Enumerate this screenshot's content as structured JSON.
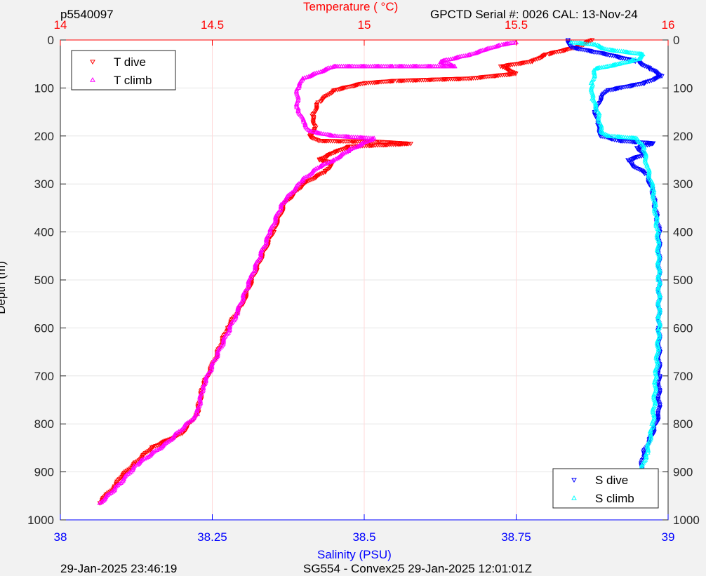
{
  "header": {
    "profile_id": "p5540097",
    "serial_info": "GPCTD Serial #: 0026 CAL: 13-Nov-24"
  },
  "footer": {
    "timestamp_left": "29-Jan-2025 23:46:19",
    "mission_info": "SG554 - Convex25 29-Jan-2025 12:01:01Z"
  },
  "colors": {
    "t_dive": "#ff0000",
    "t_climb": "#ff00ff",
    "s_dive": "#0000ff",
    "s_climb": "#00ffff",
    "top_axis": "#ff0000",
    "bottom_axis": "#0000ff",
    "grid": "#e6e6e6",
    "temp_grid": "#ffd9d9"
  },
  "chart_data": {
    "type": "scatter",
    "title": "",
    "top_axis": {
      "label": "Temperature (    °C)",
      "range": [
        14,
        16
      ],
      "ticks": [
        "14",
        "14.5",
        "15",
        "15.5",
        "16"
      ],
      "tick_values": [
        14,
        14.5,
        15,
        15.5,
        16
      ]
    },
    "bottom_axis": {
      "label": "Salinity (PSU)",
      "range": [
        38,
        39
      ],
      "ticks": [
        "38",
        "38.25",
        "38.5",
        "38.75",
        "39"
      ],
      "tick_values": [
        38,
        38.25,
        38.5,
        38.75,
        39
      ]
    },
    "y_axis": {
      "label": "Depth (m)",
      "range": [
        0,
        1000
      ],
      "reversed": true,
      "ticks": [
        "0",
        "100",
        "200",
        "300",
        "400",
        "500",
        "600",
        "700",
        "800",
        "900",
        "1000"
      ],
      "tick_values": [
        0,
        100,
        200,
        300,
        400,
        500,
        600,
        700,
        800,
        900,
        1000
      ]
    },
    "grid": true,
    "legends": [
      {
        "placement": "top-left",
        "entries": [
          "T dive",
          "T climb"
        ]
      },
      {
        "placement": "bottom-right",
        "entries": [
          "S dive",
          "S climb"
        ]
      }
    ],
    "series": [
      {
        "name": "T dive",
        "axis": "temperature",
        "marker": "triangle-down",
        "points": [
          [
            15.75,
            0
          ],
          [
            15.7,
            15
          ],
          [
            15.6,
            30
          ],
          [
            15.55,
            45
          ],
          [
            15.45,
            55
          ],
          [
            15.5,
            70
          ],
          [
            15.35,
            80
          ],
          [
            15.1,
            85
          ],
          [
            15.0,
            90
          ],
          [
            14.9,
            105
          ],
          [
            14.85,
            130
          ],
          [
            14.83,
            160
          ],
          [
            14.84,
            185
          ],
          [
            14.82,
            200
          ],
          [
            14.85,
            210
          ],
          [
            15.05,
            212
          ],
          [
            15.15,
            216
          ],
          [
            14.95,
            222
          ],
          [
            14.9,
            235
          ],
          [
            14.85,
            250
          ],
          [
            14.9,
            255
          ],
          [
            14.87,
            275
          ],
          [
            14.8,
            300
          ],
          [
            14.74,
            340
          ],
          [
            14.7,
            400
          ],
          [
            14.65,
            470
          ],
          [
            14.6,
            550
          ],
          [
            14.55,
            600
          ],
          [
            14.5,
            680
          ],
          [
            14.47,
            720
          ],
          [
            14.45,
            780
          ],
          [
            14.4,
            820
          ],
          [
            14.3,
            850
          ],
          [
            14.25,
            880
          ],
          [
            14.2,
            910
          ],
          [
            14.18,
            930
          ],
          [
            14.15,
            950
          ],
          [
            14.13,
            965
          ]
        ]
      },
      {
        "name": "T climb",
        "axis": "temperature",
        "marker": "triangle-up",
        "points": [
          [
            14.13,
            965
          ],
          [
            14.18,
            935
          ],
          [
            14.25,
            885
          ],
          [
            14.35,
            840
          ],
          [
            14.45,
            780
          ],
          [
            14.47,
            720
          ],
          [
            14.52,
            650
          ],
          [
            14.58,
            570
          ],
          [
            14.63,
            490
          ],
          [
            14.69,
            400
          ],
          [
            14.73,
            340
          ],
          [
            14.8,
            290
          ],
          [
            14.85,
            265
          ],
          [
            14.9,
            250
          ],
          [
            14.95,
            230
          ],
          [
            15.03,
            205
          ],
          [
            14.9,
            200
          ],
          [
            14.82,
            190
          ],
          [
            14.8,
            170
          ],
          [
            14.78,
            140
          ],
          [
            14.78,
            100
          ],
          [
            14.8,
            80
          ],
          [
            14.9,
            55
          ],
          [
            15.1,
            55
          ],
          [
            15.3,
            55
          ],
          [
            15.25,
            45
          ],
          [
            15.35,
            30
          ],
          [
            15.4,
            20
          ],
          [
            15.45,
            10
          ],
          [
            15.5,
            5
          ]
        ]
      },
      {
        "name": "S dive",
        "axis": "salinity",
        "marker": "triangle-down",
        "points": [
          [
            38.835,
            0
          ],
          [
            38.84,
            15
          ],
          [
            38.9,
            30
          ],
          [
            38.95,
            45
          ],
          [
            38.97,
            60
          ],
          [
            38.99,
            75
          ],
          [
            38.96,
            90
          ],
          [
            38.92,
            100
          ],
          [
            38.9,
            105
          ],
          [
            38.89,
            120
          ],
          [
            38.88,
            150
          ],
          [
            38.885,
            180
          ],
          [
            38.89,
            200
          ],
          [
            38.92,
            210
          ],
          [
            38.975,
            215
          ],
          [
            38.95,
            225
          ],
          [
            38.96,
            240
          ],
          [
            38.935,
            250
          ],
          [
            38.94,
            260
          ],
          [
            38.965,
            280
          ],
          [
            38.975,
            320
          ],
          [
            38.985,
            400
          ],
          [
            38.985,
            500
          ],
          [
            38.985,
            600
          ],
          [
            38.985,
            700
          ],
          [
            38.985,
            780
          ],
          [
            38.975,
            820
          ],
          [
            38.96,
            860
          ],
          [
            38.955,
            900
          ],
          [
            38.945,
            930
          ],
          [
            38.94,
            965
          ]
        ]
      },
      {
        "name": "S climb",
        "axis": "salinity",
        "marker": "triangle-up",
        "points": [
          [
            38.94,
            965
          ],
          [
            38.95,
            920
          ],
          [
            38.965,
            860
          ],
          [
            38.975,
            800
          ],
          [
            38.98,
            700
          ],
          [
            38.985,
            600
          ],
          [
            38.985,
            500
          ],
          [
            38.983,
            400
          ],
          [
            38.975,
            310
          ],
          [
            38.965,
            260
          ],
          [
            38.96,
            225
          ],
          [
            38.95,
            205
          ],
          [
            38.9,
            200
          ],
          [
            38.89,
            190
          ],
          [
            38.885,
            150
          ],
          [
            38.875,
            120
          ],
          [
            38.875,
            90
          ],
          [
            38.88,
            60
          ],
          [
            38.9,
            55
          ],
          [
            38.92,
            50
          ],
          [
            38.95,
            40
          ],
          [
            38.96,
            30
          ],
          [
            38.9,
            20
          ],
          [
            38.88,
            10
          ],
          [
            38.84,
            5
          ]
        ]
      }
    ]
  }
}
